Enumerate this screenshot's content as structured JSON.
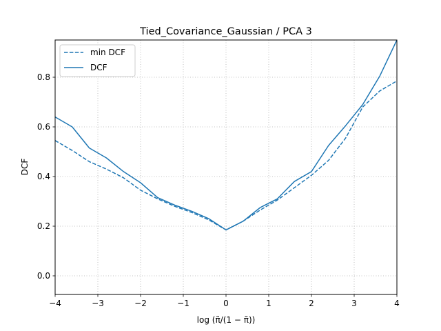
{
  "chart_data": {
    "type": "line",
    "title": "Tied_Covariance_Gaussian / PCA 3",
    "xlabel": "log (π̃/(1 − π̃))",
    "ylabel": "DCF",
    "xlim": [
      -4,
      4
    ],
    "ylim": [
      -0.075,
      0.95
    ],
    "xticks": [
      -4,
      -3,
      -2,
      -1,
      0,
      1,
      2,
      3,
      4
    ],
    "xtick_labels": [
      "−4",
      "−3",
      "−2",
      "−1",
      "0",
      "1",
      "2",
      "3",
      "4"
    ],
    "yticks": [
      0.0,
      0.2,
      0.4,
      0.6,
      0.8
    ],
    "ytick_labels": [
      "0.0",
      "0.2",
      "0.4",
      "0.6",
      "0.8"
    ],
    "grid": true,
    "legend_position": "top-left",
    "color": "#1f77b4",
    "series": [
      {
        "name": "min DCF",
        "style": "dashed",
        "x": [
          -4.0,
          -3.6,
          -3.2,
          -2.8,
          -2.4,
          -2.0,
          -1.6,
          -1.2,
          -0.8,
          -0.4,
          0.0,
          0.4,
          0.8,
          1.2,
          1.6,
          2.0,
          2.4,
          2.8,
          3.2,
          3.6,
          4.0
        ],
        "y": [
          0.545,
          0.505,
          0.46,
          0.43,
          0.395,
          0.345,
          0.31,
          0.28,
          0.255,
          0.225,
          0.185,
          0.22,
          0.265,
          0.305,
          0.355,
          0.405,
          0.465,
          0.555,
          0.68,
          0.745,
          0.785
        ]
      },
      {
        "name": "DCF",
        "style": "solid",
        "x": [
          -4.0,
          -3.6,
          -3.2,
          -2.8,
          -2.4,
          -2.0,
          -1.6,
          -1.2,
          -0.8,
          -0.4,
          0.0,
          0.4,
          0.8,
          1.2,
          1.6,
          2.0,
          2.4,
          2.8,
          3.2,
          3.6,
          4.0
        ],
        "y": [
          0.64,
          0.6,
          0.515,
          0.475,
          0.42,
          0.375,
          0.315,
          0.285,
          0.26,
          0.23,
          0.185,
          0.22,
          0.275,
          0.31,
          0.38,
          0.42,
          0.525,
          0.605,
          0.69,
          0.805,
          0.95
        ]
      }
    ]
  }
}
